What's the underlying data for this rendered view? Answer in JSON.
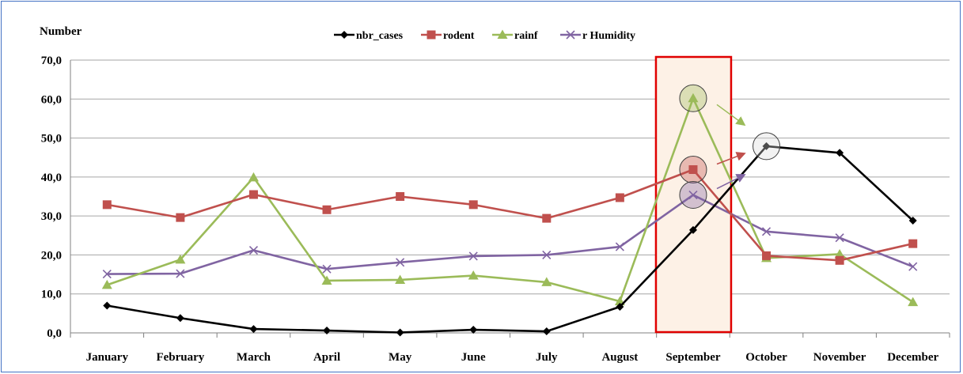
{
  "chart_data": {
    "type": "line",
    "ylabel": "Number",
    "ylim": [
      0,
      70
    ],
    "y_ticks": [
      "0,0",
      "10,0",
      "20,0",
      "30,0",
      "40,0",
      "50,0",
      "60,0",
      "70,0"
    ],
    "categories": [
      "January",
      "February",
      "March",
      "April",
      "May",
      "June",
      "July",
      "August",
      "September",
      "October",
      "November",
      "December"
    ],
    "grid": true,
    "legend_position": "top",
    "series": [
      {
        "name": "nbr_cases",
        "color": "#000000",
        "marker": "diamond",
        "values": [
          7.0,
          3.8,
          1.0,
          0.6,
          0.1,
          0.8,
          0.4,
          6.7,
          26.4,
          47.9,
          46.2,
          28.8
        ]
      },
      {
        "name": "rodent",
        "color": "#c0504d",
        "marker": "square",
        "values": [
          32.9,
          29.6,
          35.5,
          31.6,
          35.0,
          32.9,
          29.4,
          34.7,
          41.9,
          19.8,
          18.6,
          22.9
        ]
      },
      {
        "name": "rainf",
        "color": "#9bbb59",
        "marker": "triangle",
        "values": [
          12.3,
          18.8,
          39.9,
          13.4,
          13.6,
          14.7,
          13.0,
          8.1,
          60.2,
          19.2,
          20.2,
          7.9
        ]
      },
      {
        "name": "r Humidity",
        "color": "#8064a2",
        "marker": "x",
        "values": [
          15.1,
          15.2,
          21.2,
          16.4,
          18.1,
          19.7,
          20.0,
          22.1,
          35.4,
          26.0,
          24.4,
          17.0
        ]
      }
    ],
    "highlight": {
      "category": "September",
      "fill": "#fdf1e6",
      "border": "#e00000"
    },
    "annotations": [
      {
        "category": "September",
        "value": 60.2,
        "color": "#9bbb59",
        "arrow_to": "October"
      },
      {
        "category": "September",
        "value": 41.9,
        "color": "#c0504d",
        "arrow_to": "October"
      },
      {
        "category": "September",
        "value": 35.4,
        "color": "#8064a2",
        "arrow_to": "October"
      },
      {
        "category": "October",
        "value": 47.9,
        "color": "#d9d9d9"
      }
    ]
  }
}
